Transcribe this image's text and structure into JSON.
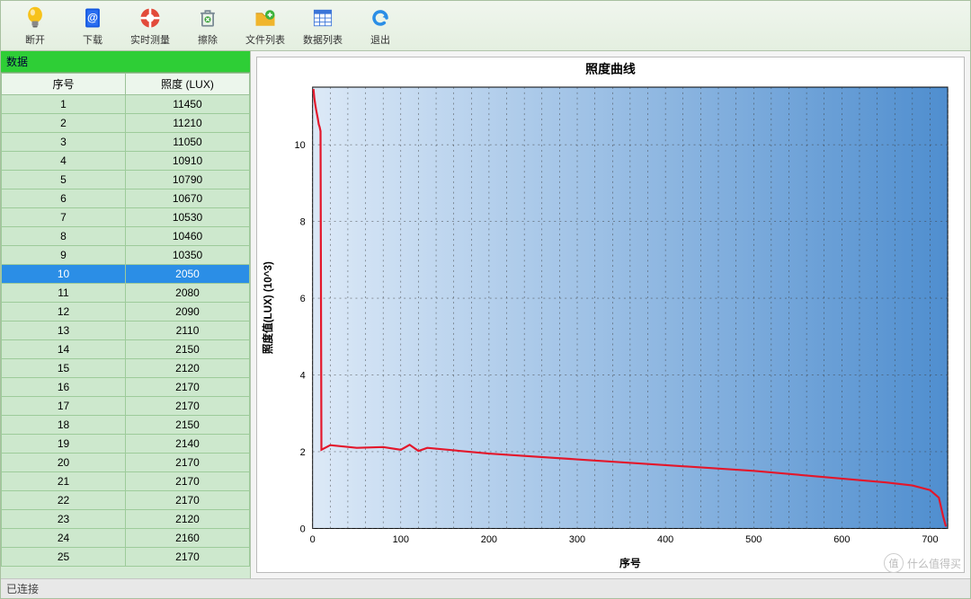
{
  "toolbar": [
    {
      "name": "disconnect-button",
      "label": "断开",
      "icon": "lightbulb",
      "color": "#f7c21a"
    },
    {
      "name": "download-button",
      "label": "下载",
      "icon": "book",
      "color": "#1256e0"
    },
    {
      "name": "realtime-button",
      "label": "实时测量",
      "icon": "lifebuoy",
      "color": "#e24a3a"
    },
    {
      "name": "erase-button",
      "label": "擦除",
      "icon": "trash",
      "color": "#7a8a94"
    },
    {
      "name": "filelist-button",
      "label": "文件列表",
      "icon": "folder-plus",
      "color": "#f0b52c"
    },
    {
      "name": "datalist-button",
      "label": "数据列表",
      "icon": "grid",
      "color": "#3a74d8"
    },
    {
      "name": "exit-button",
      "label": "退出",
      "icon": "undo",
      "color": "#2b8ee6"
    }
  ],
  "panel": {
    "title": "数据"
  },
  "table": {
    "columns": [
      "序号",
      "照度 (LUX)"
    ],
    "selected_index": 9,
    "rows": [
      [
        1,
        11450
      ],
      [
        2,
        11210
      ],
      [
        3,
        11050
      ],
      [
        4,
        10910
      ],
      [
        5,
        10790
      ],
      [
        6,
        10670
      ],
      [
        7,
        10530
      ],
      [
        8,
        10460
      ],
      [
        9,
        10350
      ],
      [
        10,
        2050
      ],
      [
        11,
        2080
      ],
      [
        12,
        2090
      ],
      [
        13,
        2110
      ],
      [
        14,
        2150
      ],
      [
        15,
        2120
      ],
      [
        16,
        2170
      ],
      [
        17,
        2170
      ],
      [
        18,
        2150
      ],
      [
        19,
        2140
      ],
      [
        20,
        2170
      ],
      [
        21,
        2170
      ],
      [
        22,
        2170
      ],
      [
        23,
        2120
      ],
      [
        24,
        2160
      ],
      [
        25,
        2170
      ]
    ]
  },
  "chart": {
    "title": "照度曲线",
    "xlabel": "序号",
    "ylabel": "照度值(LUX) (10^3)",
    "xlim": [
      0,
      720
    ],
    "xtick_step": 100,
    "ylim": [
      0,
      11.5
    ],
    "yticks": [
      0,
      2,
      4,
      6,
      8,
      10
    ],
    "bg_gradient_from": "#dce9f7",
    "bg_gradient_to": "#4f8ecf",
    "grid_color": "#3d3d3d",
    "grid_dash": "2 4",
    "line_color": "#e3172b",
    "line_width": 2.2,
    "tick_fontsize": 11,
    "label_fontsize": 12,
    "title_fontsize": 14,
    "series": [
      [
        1,
        11.45
      ],
      [
        2,
        11.21
      ],
      [
        3,
        11.05
      ],
      [
        4,
        10.91
      ],
      [
        5,
        10.79
      ],
      [
        6,
        10.67
      ],
      [
        7,
        10.53
      ],
      [
        8,
        10.46
      ],
      [
        9,
        10.35
      ],
      [
        10,
        2.05
      ],
      [
        20,
        2.17
      ],
      [
        50,
        2.1
      ],
      [
        80,
        2.12
      ],
      [
        100,
        2.05
      ],
      [
        110,
        2.18
      ],
      [
        120,
        2.02
      ],
      [
        130,
        2.1
      ],
      [
        200,
        1.95
      ],
      [
        300,
        1.8
      ],
      [
        400,
        1.65
      ],
      [
        500,
        1.5
      ],
      [
        600,
        1.3
      ],
      [
        650,
        1.2
      ],
      [
        680,
        1.12
      ],
      [
        700,
        1.0
      ],
      [
        710,
        0.8
      ],
      [
        715,
        0.3
      ],
      [
        718,
        0.05
      ]
    ]
  },
  "status": {
    "text": "已连接"
  },
  "watermark": {
    "badge": "值",
    "text": "什么值得买"
  }
}
